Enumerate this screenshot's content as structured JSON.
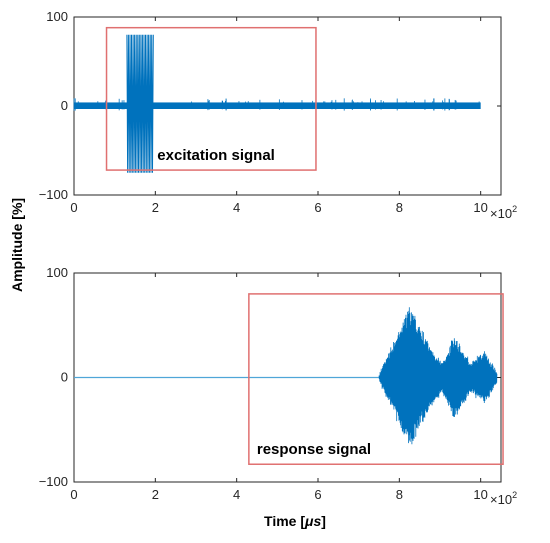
{
  "figure": {
    "ylabel": "Amplitude [%]",
    "xlabel": "Time [",
    "xlabel_unit": "μs",
    "xlabel_close": "]"
  },
  "chart_data": [
    {
      "type": "line",
      "xlim": [
        0,
        10.5
      ],
      "ylim": [
        -100,
        100
      ],
      "xticks": [
        "0",
        "2",
        "4",
        "6",
        "8",
        "10"
      ],
      "yticks": [
        "100",
        "0",
        "−100"
      ],
      "x_multiplier_base": "×10",
      "x_multiplier_exp": "2",
      "grid": false,
      "line_color": "#0072BD",
      "series": [
        {
          "kind": "excitation",
          "x_start": 0,
          "x_end": 10,
          "baseline_amplitude": 4,
          "burst": {
            "x_start": 1.3,
            "x_end": 1.95,
            "amplitude_max": 80,
            "amplitude_min": -75
          }
        }
      ],
      "annotation": {
        "label": "excitation signal",
        "x_range": [
          0.8,
          5.95
        ],
        "y_range": [
          -72,
          88
        ],
        "color": "#E07070"
      }
    },
    {
      "type": "line",
      "xlim": [
        0,
        10.5
      ],
      "ylim": [
        -100,
        100
      ],
      "xticks": [
        "0",
        "2",
        "4",
        "6",
        "8",
        "10"
      ],
      "yticks": [
        "100",
        "0",
        "−100"
      ],
      "x_multiplier_base": "×10",
      "x_multiplier_exp": "2",
      "grid": false,
      "line_color": "#0072BD",
      "series": [
        {
          "kind": "response",
          "flat_until": 7.5,
          "x_end": 10.4,
          "envelope": [
            {
              "x": 7.5,
              "amp": 5
            },
            {
              "x": 7.8,
              "amp": 30
            },
            {
              "x": 8.25,
              "amp": 70
            },
            {
              "x": 8.75,
              "amp": 32
            },
            {
              "x": 9.05,
              "amp": 15
            },
            {
              "x": 9.35,
              "amp": 42
            },
            {
              "x": 9.75,
              "amp": 16
            },
            {
              "x": 10.1,
              "amp": 27
            },
            {
              "x": 10.4,
              "amp": 6
            }
          ]
        }
      ],
      "annotation": {
        "label": "response signal",
        "x_range": [
          4.3,
          10.55
        ],
        "y_range": [
          -83,
          80
        ],
        "color": "#E07070"
      }
    }
  ]
}
